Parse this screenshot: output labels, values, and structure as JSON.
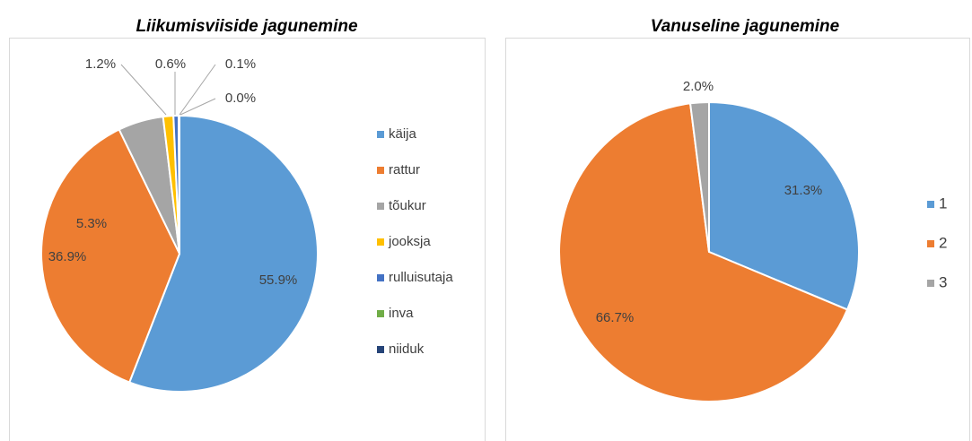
{
  "chart_data": [
    {
      "type": "pie",
      "title": "Liikumisviiside jagunemine",
      "categories": [
        "käija",
        "rattur",
        "tõukur",
        "jooksja",
        "rulluisutaja",
        "inva",
        "niiduk"
      ],
      "values": [
        55.9,
        36.9,
        5.3,
        1.2,
        0.6,
        0.1,
        0.0
      ],
      "value_labels": [
        "55.9%",
        "36.9%",
        "5.3%",
        "1.2%",
        "0.6%",
        "0.1%",
        "0.0%"
      ],
      "colors": [
        "#5b9bd5",
        "#ed7d31",
        "#a5a5a5",
        "#ffc000",
        "#4472c4",
        "#70ad47",
        "#264478"
      ],
      "legend": "right"
    },
    {
      "type": "pie",
      "title": "Vanuseline jagunemine",
      "categories": [
        "1",
        "2",
        "3"
      ],
      "values": [
        31.3,
        66.7,
        2.0
      ],
      "value_labels": [
        "31.3%",
        "66.7%",
        "2.0%"
      ],
      "colors": [
        "#5b9bd5",
        "#ed7d31",
        "#a5a5a5"
      ],
      "legend": "right"
    }
  ]
}
